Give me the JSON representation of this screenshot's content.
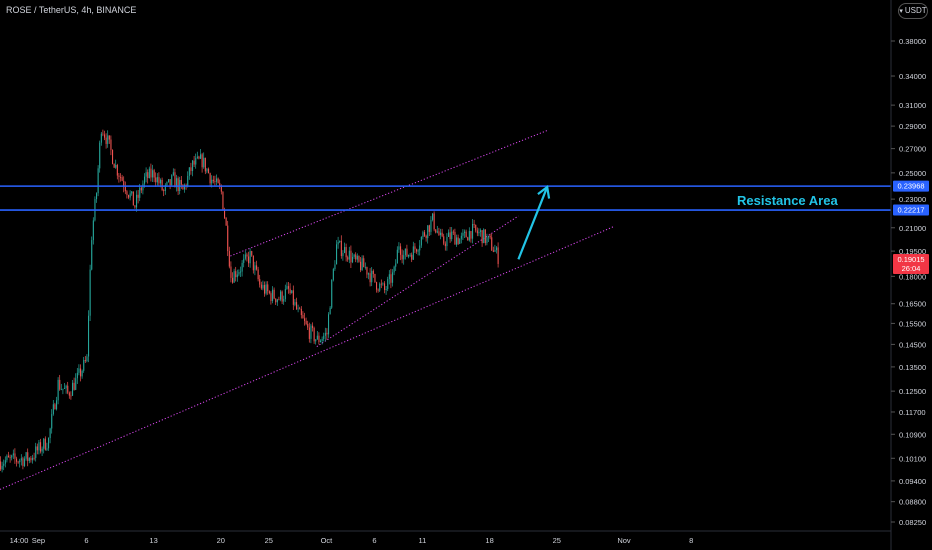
{
  "header": {
    "title": "ROSE / TetherUS, 4h, BINANCE",
    "currency": "USDT"
  },
  "annotation": {
    "text": "Resistance Area"
  },
  "price_labels": [
    {
      "value": "0.23968",
      "color": "#2962ff"
    },
    {
      "value": "0.22217",
      "color": "#2962ff"
    },
    {
      "value": "0.19015",
      "sub": "26:04",
      "color": "#f23645"
    }
  ],
  "chart_data": {
    "type": "line",
    "title": "ROSE / TetherUS, 4h, BINANCE",
    "xlabel": "",
    "ylabel": "",
    "y_scale": "log",
    "ylim": [
      0.0815,
      0.41
    ],
    "y_ticks": [
      "0.38000",
      "0.34000",
      "0.31000",
      "0.29000",
      "0.27000",
      "0.25000",
      "0.23000",
      "0.21000",
      "0.19500",
      "0.18000",
      "0.16500",
      "0.15500",
      "0.14500",
      "0.13500",
      "0.12500",
      "0.11700",
      "0.10900",
      "0.10100",
      "0.09400",
      "0.08800",
      "0.08250"
    ],
    "x_ticks": [
      "14:00",
      "Sep",
      "6",
      "13",
      "20",
      "25",
      "Oct",
      "6",
      "11",
      "18",
      "25",
      "Nov",
      "8"
    ],
    "x_tick_dates": [
      "2021-08-29",
      "2021-09-01",
      "2021-09-06",
      "2021-09-13",
      "2021-09-20",
      "2021-09-25",
      "2021-10-01",
      "2021-10-06",
      "2021-10-11",
      "2021-10-18",
      "2021-10-25",
      "2021-11-01",
      "2021-11-08"
    ],
    "series": [
      {
        "values": [
          [
            "2021-08-28",
            0.1
          ],
          [
            "2021-08-31",
            0.101
          ],
          [
            "2021-09-02",
            0.107
          ],
          [
            "2021-09-03",
            0.128
          ],
          [
            "2021-09-04",
            0.124
          ],
          [
            "2021-09-05",
            0.13
          ],
          [
            "2021-09-06",
            0.138
          ],
          [
            "2021-09-06T12",
            0.205
          ],
          [
            "2021-09-07",
            0.235
          ],
          [
            "2021-09-07T12",
            0.29
          ],
          [
            "2021-09-08",
            0.28
          ],
          [
            "2021-09-09",
            0.255
          ],
          [
            "2021-09-10",
            0.24
          ],
          [
            "2021-09-11",
            0.225
          ],
          [
            "2021-09-12",
            0.245
          ],
          [
            "2021-09-13",
            0.25
          ],
          [
            "2021-09-14",
            0.235
          ],
          [
            "2021-09-15",
            0.245
          ],
          [
            "2021-09-16",
            0.236
          ],
          [
            "2021-09-17",
            0.256
          ],
          [
            "2021-09-18",
            0.26
          ],
          [
            "2021-09-19",
            0.245
          ],
          [
            "2021-09-20",
            0.235
          ],
          [
            "2021-09-20T12",
            0.21
          ],
          [
            "2021-09-21",
            0.18
          ],
          [
            "2021-09-22",
            0.185
          ],
          [
            "2021-09-23",
            0.192
          ],
          [
            "2021-09-24",
            0.175
          ],
          [
            "2021-09-25",
            0.17
          ],
          [
            "2021-09-26",
            0.168
          ],
          [
            "2021-09-27",
            0.172
          ],
          [
            "2021-09-28",
            0.16
          ],
          [
            "2021-09-29",
            0.152
          ],
          [
            "2021-09-30",
            0.147
          ],
          [
            "2021-10-01",
            0.15
          ],
          [
            "2021-10-01T12",
            0.175
          ],
          [
            "2021-10-02",
            0.198
          ],
          [
            "2021-10-03",
            0.195
          ],
          [
            "2021-10-04",
            0.188
          ],
          [
            "2021-10-05",
            0.185
          ],
          [
            "2021-10-06",
            0.177
          ],
          [
            "2021-10-07",
            0.172
          ],
          [
            "2021-10-08",
            0.182
          ],
          [
            "2021-10-08T12",
            0.2
          ],
          [
            "2021-10-09",
            0.192
          ],
          [
            "2021-10-10",
            0.195
          ],
          [
            "2021-10-11",
            0.205
          ],
          [
            "2021-10-12",
            0.215
          ],
          [
            "2021-10-13",
            0.2
          ],
          [
            "2021-10-14",
            0.205
          ],
          [
            "2021-10-15",
            0.202
          ],
          [
            "2021-10-16",
            0.208
          ],
          [
            "2021-10-17",
            0.206
          ],
          [
            "2021-10-18",
            0.2
          ],
          [
            "2021-10-19",
            0.19
          ]
        ]
      }
    ],
    "horizontal_lines": [
      0.23968,
      0.22217
    ],
    "trendlines": [
      {
        "from": [
          "2021-08-28",
          0.0915
        ],
        "to": [
          "2021-10-31",
          0.211
        ]
      },
      {
        "from": [
          "2021-09-21",
          0.192
        ],
        "to": [
          "2021-10-24",
          0.286
        ]
      },
      {
        "from": [
          "2021-09-30",
          0.144
        ],
        "to": [
          "2021-10-21",
          0.218
        ]
      }
    ],
    "arrow": {
      "from": [
        "2021-10-21",
        0.19
      ],
      "to": [
        "2021-10-24",
        0.239
      ]
    },
    "colors": {
      "up": "#26a69a",
      "down": "#ef5350",
      "lines": "#2962ff",
      "trend": "#d946ef",
      "arrow": "#22c4e6"
    },
    "grid": false,
    "legend": "none"
  }
}
